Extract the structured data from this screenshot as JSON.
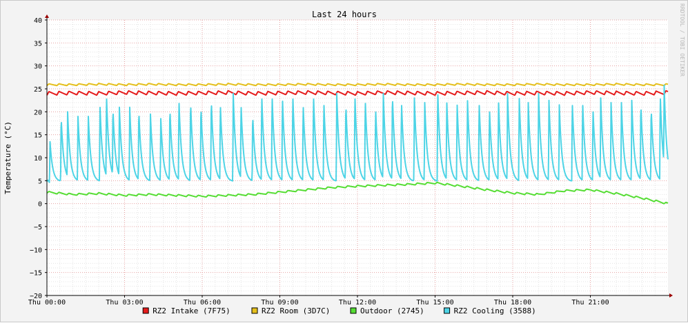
{
  "chart_data": {
    "type": "line",
    "title": "Last 24 hours",
    "ylabel": "Temperature (°C)",
    "xlabel": "",
    "watermark": "RRDTOOL / TOBI OETIKER",
    "ylim": [
      -20,
      40
    ],
    "y_ticks": [
      -20,
      -15,
      -10,
      -5,
      0,
      5,
      10,
      15,
      20,
      25,
      30,
      35,
      40
    ],
    "x_range_hours": [
      0,
      24
    ],
    "x_tick_hours": [
      0,
      3,
      6,
      9,
      12,
      15,
      18,
      21
    ],
    "x_tick_labels": [
      "Thu 00:00",
      "Thu 03:00",
      "Thu 06:00",
      "Thu 09:00",
      "Thu 12:00",
      "Thu 15:00",
      "Thu 18:00",
      "Thu 21:00"
    ],
    "grid": true,
    "legend_position": "bottom",
    "series": [
      {
        "name": "RZ2 Intake (7F75)",
        "color": "#e51b1b",
        "x_hours": [
          0,
          1,
          2,
          3,
          4,
          5,
          6,
          7,
          8,
          9,
          10,
          11,
          12,
          13,
          14,
          15,
          16,
          17,
          18,
          19,
          20,
          21,
          22,
          23,
          24
        ],
        "values": [
          24.0,
          24.1,
          24.0,
          24.2,
          24.1,
          24.0,
          24.1,
          24.2,
          24.0,
          24.1,
          24.2,
          24.1,
          24.0,
          24.2,
          24.1,
          24.0,
          24.1,
          24.2,
          24.0,
          24.1,
          24.0,
          24.2,
          24.1,
          24.0,
          24.2
        ],
        "oscillation": 0.8
      },
      {
        "name": "RZ2 Room (3D7C)",
        "color": "#e5bf1b",
        "x_hours": [
          0,
          1,
          2,
          3,
          4,
          5,
          6,
          7,
          8,
          9,
          10,
          11,
          12,
          13,
          14,
          15,
          16,
          17,
          18,
          19,
          20,
          21,
          22,
          23,
          24
        ],
        "values": [
          25.9,
          25.9,
          26.0,
          25.9,
          26.0,
          25.9,
          25.9,
          26.0,
          25.9,
          25.9,
          26.0,
          25.9,
          25.9,
          26.0,
          25.9,
          25.9,
          26.0,
          25.9,
          25.9,
          26.0,
          25.9,
          25.9,
          26.0,
          25.9,
          25.9
        ],
        "oscillation": 0.4
      },
      {
        "name": "Outdoor (2745)",
        "color": "#55dd33",
        "x_hours": [
          0,
          1,
          2,
          3,
          4,
          5,
          6,
          7,
          8,
          9,
          10,
          11,
          12,
          13,
          14,
          15,
          16,
          17,
          18,
          19,
          20,
          21,
          22,
          23,
          24
        ],
        "values": [
          2.5,
          2.0,
          2.2,
          1.8,
          2.0,
          1.8,
          1.6,
          1.8,
          2.0,
          2.5,
          3.0,
          3.5,
          3.8,
          4.0,
          4.2,
          4.5,
          3.8,
          3.0,
          2.3,
          2.0,
          2.8,
          3.0,
          2.2,
          1.2,
          0.0
        ],
        "oscillation": 0.4
      },
      {
        "name": "RZ2 Cooling (3588)",
        "color": "#4dd4e6",
        "peaks": [
          [
            0.12,
            13.5
          ],
          [
            0.55,
            19.0
          ],
          [
            0.8,
            20.0
          ],
          [
            1.2,
            19.0
          ],
          [
            1.6,
            19.0
          ],
          [
            2.05,
            21.5
          ],
          [
            2.3,
            24.0
          ],
          [
            2.55,
            21.0
          ],
          [
            2.8,
            21.0
          ],
          [
            3.2,
            21.0
          ],
          [
            3.55,
            20.5
          ],
          [
            4.0,
            19.5
          ],
          [
            4.4,
            18.5
          ],
          [
            4.75,
            21.0
          ],
          [
            5.1,
            23.0
          ],
          [
            5.55,
            22.5
          ],
          [
            5.95,
            21.5
          ],
          [
            6.35,
            23.0
          ],
          [
            6.7,
            22.0
          ],
          [
            7.2,
            24.0
          ],
          [
            7.5,
            22.0
          ],
          [
            7.95,
            19.5
          ],
          [
            8.3,
            24.0
          ],
          [
            8.7,
            24.0
          ],
          [
            9.1,
            23.5
          ],
          [
            9.5,
            24.0
          ],
          [
            9.9,
            22.0
          ],
          [
            10.3,
            24.0
          ],
          [
            10.7,
            22.5
          ],
          [
            11.2,
            24.0
          ],
          [
            11.55,
            22.0
          ],
          [
            11.9,
            24.0
          ],
          [
            12.3,
            23.0
          ],
          [
            12.7,
            21.0
          ],
          [
            13.0,
            24.0
          ],
          [
            13.35,
            24.0
          ],
          [
            13.7,
            22.5
          ],
          [
            14.2,
            23.0
          ],
          [
            14.6,
            22.0
          ],
          [
            15.1,
            25.0
          ],
          [
            15.45,
            22.5
          ],
          [
            15.85,
            22.0
          ],
          [
            16.25,
            23.0
          ],
          [
            16.7,
            22.5
          ],
          [
            17.1,
            21.0
          ],
          [
            17.45,
            22.5
          ],
          [
            17.8,
            24.0
          ],
          [
            18.25,
            23.5
          ],
          [
            18.6,
            22.0
          ],
          [
            19.0,
            24.0
          ],
          [
            19.4,
            22.5
          ],
          [
            19.8,
            21.5
          ],
          [
            20.3,
            22.5
          ],
          [
            20.7,
            22.5
          ],
          [
            21.1,
            21.0
          ],
          [
            21.4,
            23.0
          ],
          [
            21.8,
            22.0
          ],
          [
            22.2,
            22.0
          ],
          [
            22.6,
            22.5
          ],
          [
            22.95,
            22.0
          ],
          [
            23.35,
            21.0
          ],
          [
            23.7,
            24.0
          ],
          [
            23.85,
            26.5
          ]
        ],
        "baseline": 4.8
      }
    ]
  }
}
